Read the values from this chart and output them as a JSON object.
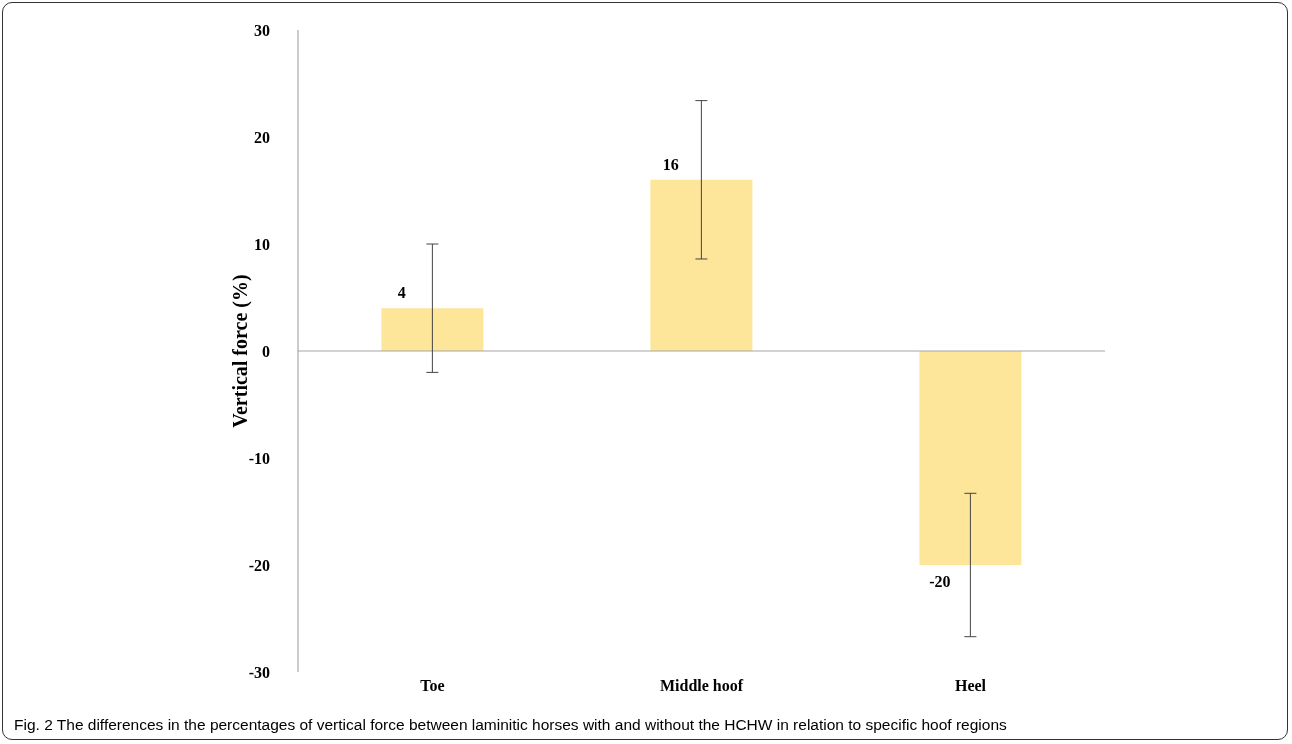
{
  "chart_data": {
    "type": "bar",
    "ylabel": "Vertical force (%)",
    "categories": [
      "Toe",
      "Middle hoof",
      "Heel"
    ],
    "values": [
      4,
      16,
      -20
    ],
    "errors": [
      6,
      7.4,
      6.7
    ],
    "color": "#fde699",
    "ylim": [
      -30,
      30
    ],
    "yticks": [
      -30,
      -20,
      -10,
      0,
      10,
      20,
      30
    ],
    "ref_lines": [
      {
        "axis": "y",
        "value": 0,
        "color": "#a6a6a6"
      }
    ],
    "data_labels": true,
    "annotations": [
      "Fig. 2 The differences in the percentages of vertical force between laminitic horses with and without the HCHW in relation to specific hoof regions"
    ]
  }
}
